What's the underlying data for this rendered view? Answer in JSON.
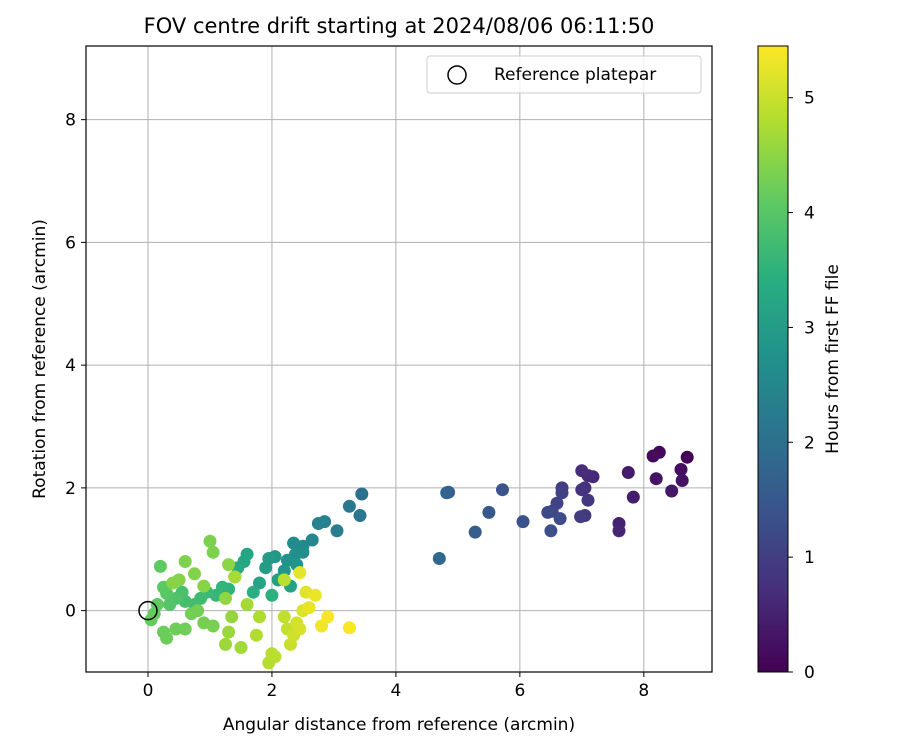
{
  "chart_data": {
    "type": "scatter",
    "title": "FOV centre drift starting at 2024/08/06 06:11:50",
    "xlabel": "Angular distance from reference (arcmin)",
    "ylabel": "Rotation from reference (arcmin)",
    "xlim": [
      -1,
      9.1
    ],
    "ylim": [
      -1,
      9.2
    ],
    "xticks": [
      0,
      2,
      4,
      6,
      8
    ],
    "yticks": [
      0,
      2,
      4,
      6,
      8
    ],
    "grid": true,
    "legend": {
      "placement": "top-right",
      "entries": [
        "Reference platepar"
      ]
    },
    "reference_point": {
      "x": 0,
      "y": 0,
      "label": "Reference platepar"
    },
    "colorbar": {
      "label": "Hours from first FF file",
      "colormap": "viridis",
      "range": [
        0,
        5.45
      ],
      "ticks": [
        0,
        1,
        2,
        3,
        4,
        5
      ]
    },
    "series": [
      {
        "points": [
          [
            8.7,
            2.5,
            0.05
          ],
          [
            8.25,
            2.58,
            0.1
          ],
          [
            8.15,
            2.52,
            0.15
          ],
          [
            8.6,
            2.3,
            0.2
          ],
          [
            8.62,
            2.12,
            0.25
          ],
          [
            8.2,
            2.15,
            0.3
          ],
          [
            8.45,
            1.95,
            0.35
          ],
          [
            7.75,
            2.25,
            0.4
          ],
          [
            7.83,
            1.85,
            0.45
          ],
          [
            7.6,
            1.42,
            0.5
          ],
          [
            7.6,
            1.3,
            0.55
          ],
          [
            7.18,
            2.18,
            0.6
          ],
          [
            7.1,
            2.2,
            0.65
          ],
          [
            7.0,
            2.28,
            0.7
          ],
          [
            7.05,
            2.0,
            0.75
          ],
          [
            7.0,
            1.97,
            0.8
          ],
          [
            7.1,
            1.8,
            0.85
          ],
          [
            7.05,
            1.55,
            0.9
          ],
          [
            6.98,
            1.53,
            0.95
          ],
          [
            6.68,
            2.0,
            1.0
          ],
          [
            6.68,
            1.92,
            1.05
          ],
          [
            6.6,
            1.75,
            1.1
          ],
          [
            6.52,
            1.62,
            1.15
          ],
          [
            6.45,
            1.6,
            1.2
          ],
          [
            6.65,
            1.5,
            1.25
          ],
          [
            6.5,
            1.3,
            1.3
          ],
          [
            6.05,
            1.45,
            1.35
          ],
          [
            5.72,
            1.97,
            1.4
          ],
          [
            5.5,
            1.6,
            1.5
          ],
          [
            5.28,
            1.28,
            1.6
          ],
          [
            4.85,
            1.93,
            1.7
          ],
          [
            4.82,
            1.92,
            1.75
          ],
          [
            4.7,
            0.85,
            1.85
          ],
          [
            3.45,
            1.9,
            2.0
          ],
          [
            3.42,
            1.55,
            2.1
          ],
          [
            3.25,
            1.7,
            2.2
          ],
          [
            3.05,
            1.3,
            2.3
          ],
          [
            2.85,
            1.45,
            2.35
          ],
          [
            2.75,
            1.42,
            2.4
          ],
          [
            2.65,
            1.15,
            2.5
          ],
          [
            2.5,
            1.05,
            2.55
          ],
          [
            2.35,
            1.1,
            2.6
          ],
          [
            2.5,
            0.95,
            2.65
          ],
          [
            2.38,
            0.92,
            2.7
          ],
          [
            2.25,
            0.82,
            2.75
          ],
          [
            2.4,
            0.75,
            2.8
          ],
          [
            2.2,
            0.65,
            2.85
          ],
          [
            2.05,
            0.88,
            2.9
          ],
          [
            1.95,
            0.85,
            2.95
          ],
          [
            1.9,
            0.7,
            3.0
          ],
          [
            2.1,
            0.5,
            3.05
          ],
          [
            2.3,
            0.4,
            3.1
          ],
          [
            1.8,
            0.45,
            3.15
          ],
          [
            1.6,
            0.92,
            3.2
          ],
          [
            1.55,
            0.8,
            3.25
          ],
          [
            1.45,
            0.7,
            3.3
          ],
          [
            1.4,
            0.55,
            3.35
          ],
          [
            1.7,
            0.3,
            3.4
          ],
          [
            2.0,
            0.25,
            3.45
          ],
          [
            1.3,
            0.35,
            3.5
          ],
          [
            1.2,
            0.38,
            3.55
          ],
          [
            1.1,
            0.25,
            3.6
          ],
          [
            0.95,
            0.3,
            3.65
          ],
          [
            0.85,
            0.2,
            3.7
          ],
          [
            0.75,
            0.1,
            3.75
          ],
          [
            0.6,
            0.15,
            3.8
          ],
          [
            0.55,
            0.3,
            3.85
          ],
          [
            0.45,
            0.2,
            3.9
          ],
          [
            0.35,
            0.1,
            3.95
          ],
          [
            0.3,
            0.28,
            4.0
          ],
          [
            0.25,
            0.38,
            4.05
          ],
          [
            0.2,
            0.72,
            4.1
          ],
          [
            0.15,
            0.1,
            4.12
          ],
          [
            0.1,
            -0.05,
            4.14
          ],
          [
            0.05,
            -0.15,
            4.16
          ],
          [
            0.25,
            -0.35,
            4.18
          ],
          [
            0.3,
            -0.45,
            4.2
          ],
          [
            0.45,
            -0.3,
            4.22
          ],
          [
            0.6,
            -0.3,
            4.24
          ],
          [
            0.7,
            -0.05,
            4.26
          ],
          [
            0.8,
            0.0,
            4.28
          ],
          [
            0.9,
            -0.2,
            4.3
          ],
          [
            1.05,
            -0.25,
            4.32
          ],
          [
            1.0,
            1.13,
            4.34
          ],
          [
            1.05,
            0.95,
            4.36
          ],
          [
            0.6,
            0.8,
            4.38
          ],
          [
            0.75,
            0.6,
            4.4
          ],
          [
            0.5,
            0.5,
            4.42
          ],
          [
            0.4,
            0.45,
            4.44
          ],
          [
            0.9,
            0.4,
            4.46
          ],
          [
            1.3,
            0.75,
            4.5
          ],
          [
            1.25,
            0.2,
            4.52
          ],
          [
            1.35,
            -0.1,
            4.56
          ],
          [
            1.3,
            -0.35,
            4.6
          ],
          [
            1.25,
            -0.55,
            4.62
          ],
          [
            1.5,
            -0.6,
            4.66
          ],
          [
            1.6,
            0.1,
            4.7
          ],
          [
            1.4,
            0.55,
            4.72
          ],
          [
            1.8,
            -0.1,
            4.78
          ],
          [
            1.75,
            -0.4,
            4.8
          ],
          [
            1.95,
            -0.85,
            4.84
          ],
          [
            2.0,
            -0.7,
            4.86
          ],
          [
            2.05,
            -0.75,
            4.88
          ],
          [
            2.2,
            0.5,
            4.9
          ],
          [
            2.2,
            -0.1,
            4.92
          ],
          [
            2.25,
            -0.3,
            4.96
          ],
          [
            2.3,
            -0.55,
            5.0
          ],
          [
            2.35,
            -0.4,
            5.04
          ],
          [
            2.4,
            -0.2,
            5.08
          ],
          [
            2.45,
            -0.3,
            5.12
          ],
          [
            2.5,
            0.0,
            5.16
          ],
          [
            2.55,
            0.3,
            5.2
          ],
          [
            2.45,
            0.62,
            5.24
          ],
          [
            2.6,
            0.05,
            5.28
          ],
          [
            2.7,
            0.25,
            5.3
          ],
          [
            2.8,
            -0.25,
            5.34
          ],
          [
            2.9,
            -0.1,
            5.38
          ],
          [
            3.25,
            -0.28,
            5.42
          ]
        ]
      }
    ]
  }
}
